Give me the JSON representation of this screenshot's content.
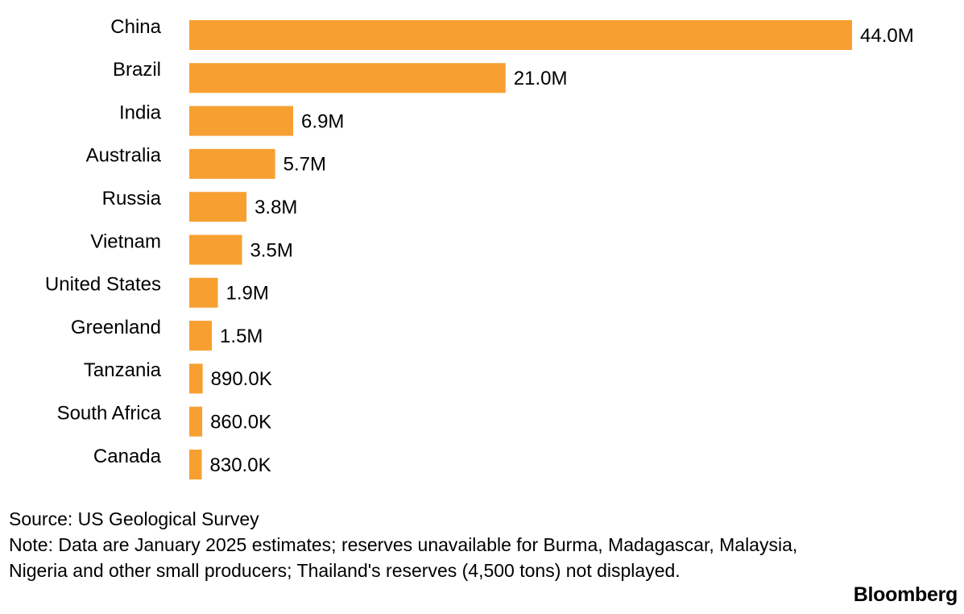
{
  "chart_data": {
    "type": "bar",
    "orientation": "horizontal",
    "categories": [
      "China",
      "Brazil",
      "India",
      "Australia",
      "Russia",
      "Vietnam",
      "United States",
      "Greenland",
      "Tanzania",
      "South Africa",
      "Canada"
    ],
    "values": [
      44000000,
      21000000,
      6900000,
      5700000,
      3800000,
      3500000,
      1900000,
      1500000,
      890000,
      860000,
      830000
    ],
    "value_labels": [
      "44.0M",
      "21.0M",
      "6.9M",
      "5.7M",
      "3.8M",
      "3.5M",
      "1.9M",
      "1.5M",
      "890.0K",
      "860.0K",
      "830.0K"
    ],
    "bar_color": "#f7a031",
    "xlim": [
      0,
      44000000
    ],
    "grid": false,
    "legend": "none"
  },
  "footer": {
    "source": "Source: US Geological Survey",
    "note": "Note: Data are January 2025 estimates; reserves unavailable for Burma, Madagascar, Malaysia, Nigeria and other small producers; Thailand's reserves (4,500 tons) not displayed.",
    "brand": "Bloomberg"
  }
}
